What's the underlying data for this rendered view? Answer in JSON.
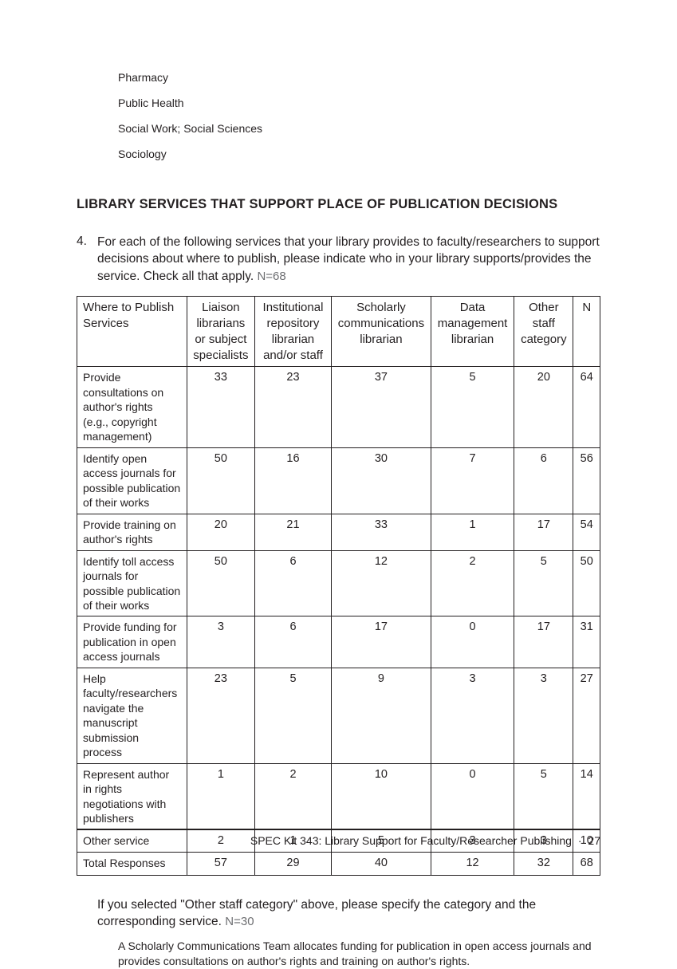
{
  "disciplines": [
    "Pharmacy",
    "Public Health",
    "Social Work; Social Sciences",
    "Sociology"
  ],
  "section_heading": "LIBRARY SERVICES THAT SUPPORT PLACE OF PUBLICATION DECISIONS",
  "question": {
    "number": "4.",
    "text": "For each of the following services that your library provides to faculty/researchers to support decisions about where to publish, please indicate who in your library supports/provides the service. Check all that apply.",
    "n_label": "N=68"
  },
  "table": {
    "columns": [
      "Where to Publish Services",
      "Liaison librarians or subject specialists",
      "Institutional repository librarian and/or staff",
      "Scholarly communications librarian",
      "Data management librarian",
      "Other staff category",
      "N"
    ],
    "rows": [
      {
        "label": "Provide consultations on author's rights (e.g., copyright management)",
        "v": [
          "33",
          "23",
          "37",
          "5",
          "20",
          "64"
        ]
      },
      {
        "label": "Identify open access journals for possible publication of their works",
        "v": [
          "50",
          "16",
          "30",
          "7",
          "6",
          "56"
        ]
      },
      {
        "label": "Provide training on author's rights",
        "v": [
          "20",
          "21",
          "33",
          "1",
          "17",
          "54"
        ]
      },
      {
        "label": "Identify toll access journals for possible publication of their works",
        "v": [
          "50",
          "6",
          "12",
          "2",
          "5",
          "50"
        ]
      },
      {
        "label": "Provide funding for publication in open access journals",
        "v": [
          "3",
          "6",
          "17",
          "0",
          "17",
          "31"
        ]
      },
      {
        "label": "Help faculty/researchers navigate the manuscript submission process",
        "v": [
          "23",
          "5",
          "9",
          "3",
          "3",
          "27"
        ]
      },
      {
        "label": "Represent author in rights negotiations with publishers",
        "v": [
          "1",
          "2",
          "10",
          "0",
          "5",
          "14"
        ]
      },
      {
        "label": "Other service",
        "v": [
          "2",
          "1",
          "5",
          "3",
          "3",
          "10"
        ]
      },
      {
        "label": "Total Responses",
        "v": [
          "57",
          "29",
          "40",
          "12",
          "32",
          "68"
        ]
      }
    ]
  },
  "followup": {
    "prompt": "If you selected \"Other staff category\" above, please specify the category and the corresponding service.",
    "n_label": "N=30",
    "response": "A Scholarly Communications Team allocates funding for publication in open access journals and provides consultations on author's rights and training on author's rights."
  },
  "footer": {
    "title": "SPEC Kit 343: Library Support for Faculty/Researcher Publishing",
    "separator": "·",
    "page": "27"
  }
}
